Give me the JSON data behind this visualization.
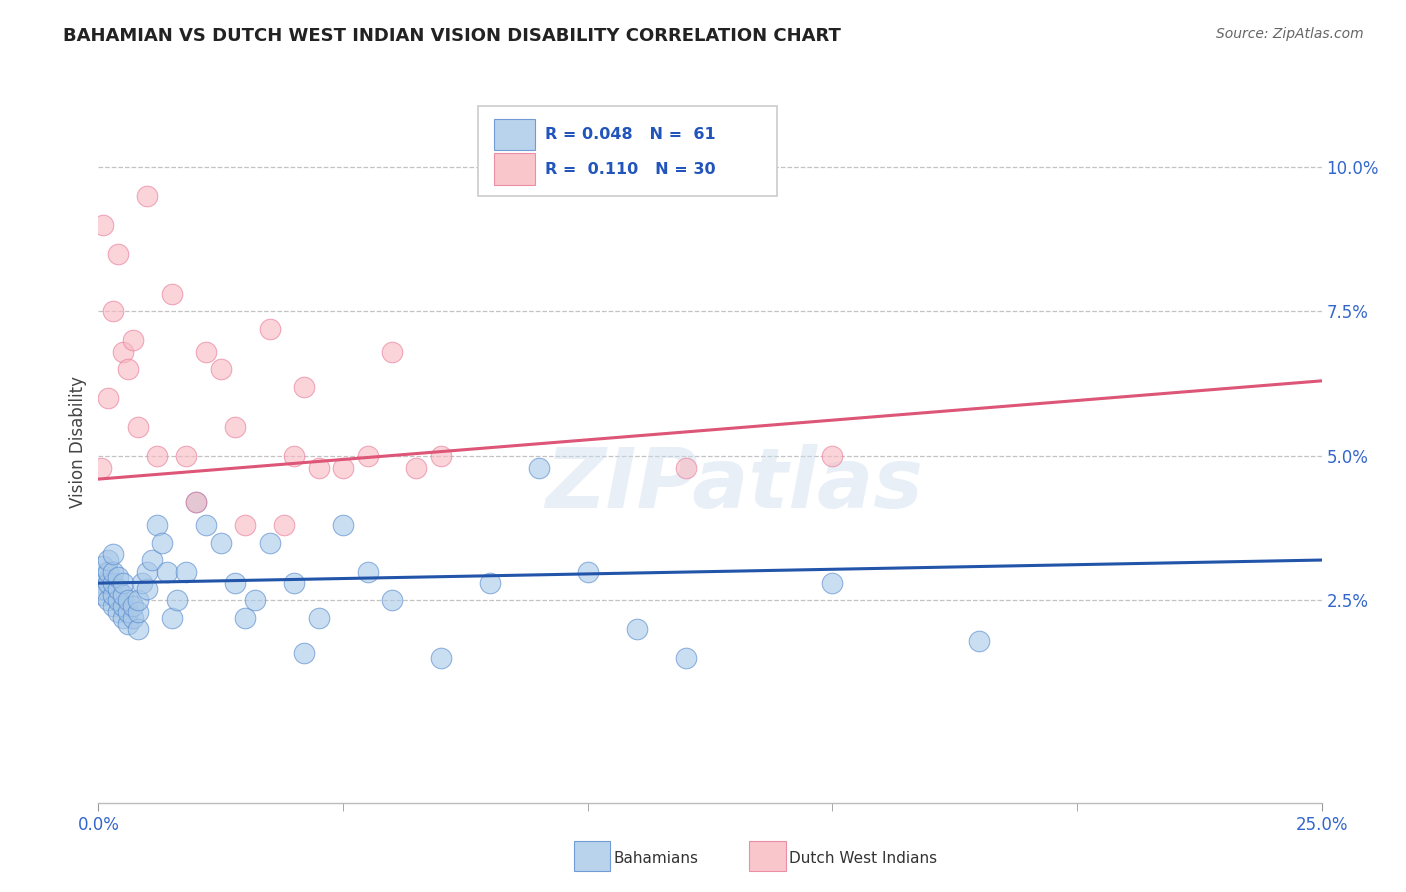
{
  "title": "BAHAMIAN VS DUTCH WEST INDIAN VISION DISABILITY CORRELATION CHART",
  "source": "Source: ZipAtlas.com",
  "ylabel_label": "Vision Disability",
  "right_ytick_vals": [
    0.025,
    0.05,
    0.075,
    0.1
  ],
  "right_ytick_labels": [
    "2.5%",
    "5.0%",
    "7.5%",
    "10.0%"
  ],
  "legend_blue_r": "0.048",
  "legend_blue_n": "61",
  "legend_pink_r": "0.110",
  "legend_pink_n": "30",
  "legend_label_blue": "Bahamians",
  "legend_label_pink": "Dutch West Indians",
  "blue_fill_color": "#A8C8E8",
  "blue_edge_color": "#5588CC",
  "pink_fill_color": "#F8B8C0",
  "pink_edge_color": "#E87898",
  "blue_line_color": "#2255AA",
  "pink_line_color": "#DD5577",
  "watermark": "ZIPatlas",
  "blue_scatter_x": [
    0.0005,
    0.001,
    0.001,
    0.001,
    0.001,
    0.002,
    0.002,
    0.002,
    0.002,
    0.003,
    0.003,
    0.003,
    0.003,
    0.003,
    0.004,
    0.004,
    0.004,
    0.004,
    0.005,
    0.005,
    0.005,
    0.005,
    0.006,
    0.006,
    0.006,
    0.007,
    0.007,
    0.008,
    0.008,
    0.008,
    0.009,
    0.01,
    0.01,
    0.011,
    0.012,
    0.013,
    0.014,
    0.015,
    0.016,
    0.018,
    0.02,
    0.022,
    0.025,
    0.028,
    0.03,
    0.032,
    0.035,
    0.04,
    0.042,
    0.045,
    0.05,
    0.055,
    0.06,
    0.07,
    0.08,
    0.09,
    0.1,
    0.11,
    0.12,
    0.15,
    0.18
  ],
  "blue_scatter_y": [
    0.028,
    0.026,
    0.029,
    0.031,
    0.027,
    0.025,
    0.028,
    0.03,
    0.032,
    0.024,
    0.026,
    0.028,
    0.03,
    0.033,
    0.023,
    0.025,
    0.027,
    0.029,
    0.022,
    0.024,
    0.026,
    0.028,
    0.021,
    0.023,
    0.025,
    0.022,
    0.024,
    0.02,
    0.023,
    0.025,
    0.028,
    0.027,
    0.03,
    0.032,
    0.038,
    0.035,
    0.03,
    0.022,
    0.025,
    0.03,
    0.042,
    0.038,
    0.035,
    0.028,
    0.022,
    0.025,
    0.035,
    0.028,
    0.016,
    0.022,
    0.038,
    0.03,
    0.025,
    0.015,
    0.028,
    0.048,
    0.03,
    0.02,
    0.015,
    0.028,
    0.018
  ],
  "pink_scatter_x": [
    0.0005,
    0.001,
    0.002,
    0.003,
    0.004,
    0.005,
    0.006,
    0.007,
    0.008,
    0.01,
    0.012,
    0.015,
    0.018,
    0.02,
    0.022,
    0.025,
    0.028,
    0.03,
    0.035,
    0.038,
    0.04,
    0.042,
    0.045,
    0.05,
    0.055,
    0.06,
    0.065,
    0.07,
    0.12,
    0.15
  ],
  "pink_scatter_y": [
    0.048,
    0.09,
    0.06,
    0.075,
    0.085,
    0.068,
    0.065,
    0.07,
    0.055,
    0.095,
    0.05,
    0.078,
    0.05,
    0.042,
    0.068,
    0.065,
    0.055,
    0.038,
    0.072,
    0.038,
    0.05,
    0.062,
    0.048,
    0.048,
    0.05,
    0.068,
    0.048,
    0.05,
    0.048,
    0.05
  ],
  "xlim": [
    0.0,
    0.25
  ],
  "ylim": [
    -0.01,
    0.115
  ],
  "blue_trend_start_x": 0.0,
  "blue_trend_start_y": 0.028,
  "blue_trend_end_x": 0.25,
  "blue_trend_end_y": 0.032,
  "pink_trend_start_x": 0.0,
  "pink_trend_start_y": 0.046,
  "pink_trend_end_x": 0.25,
  "pink_trend_end_y": 0.063
}
